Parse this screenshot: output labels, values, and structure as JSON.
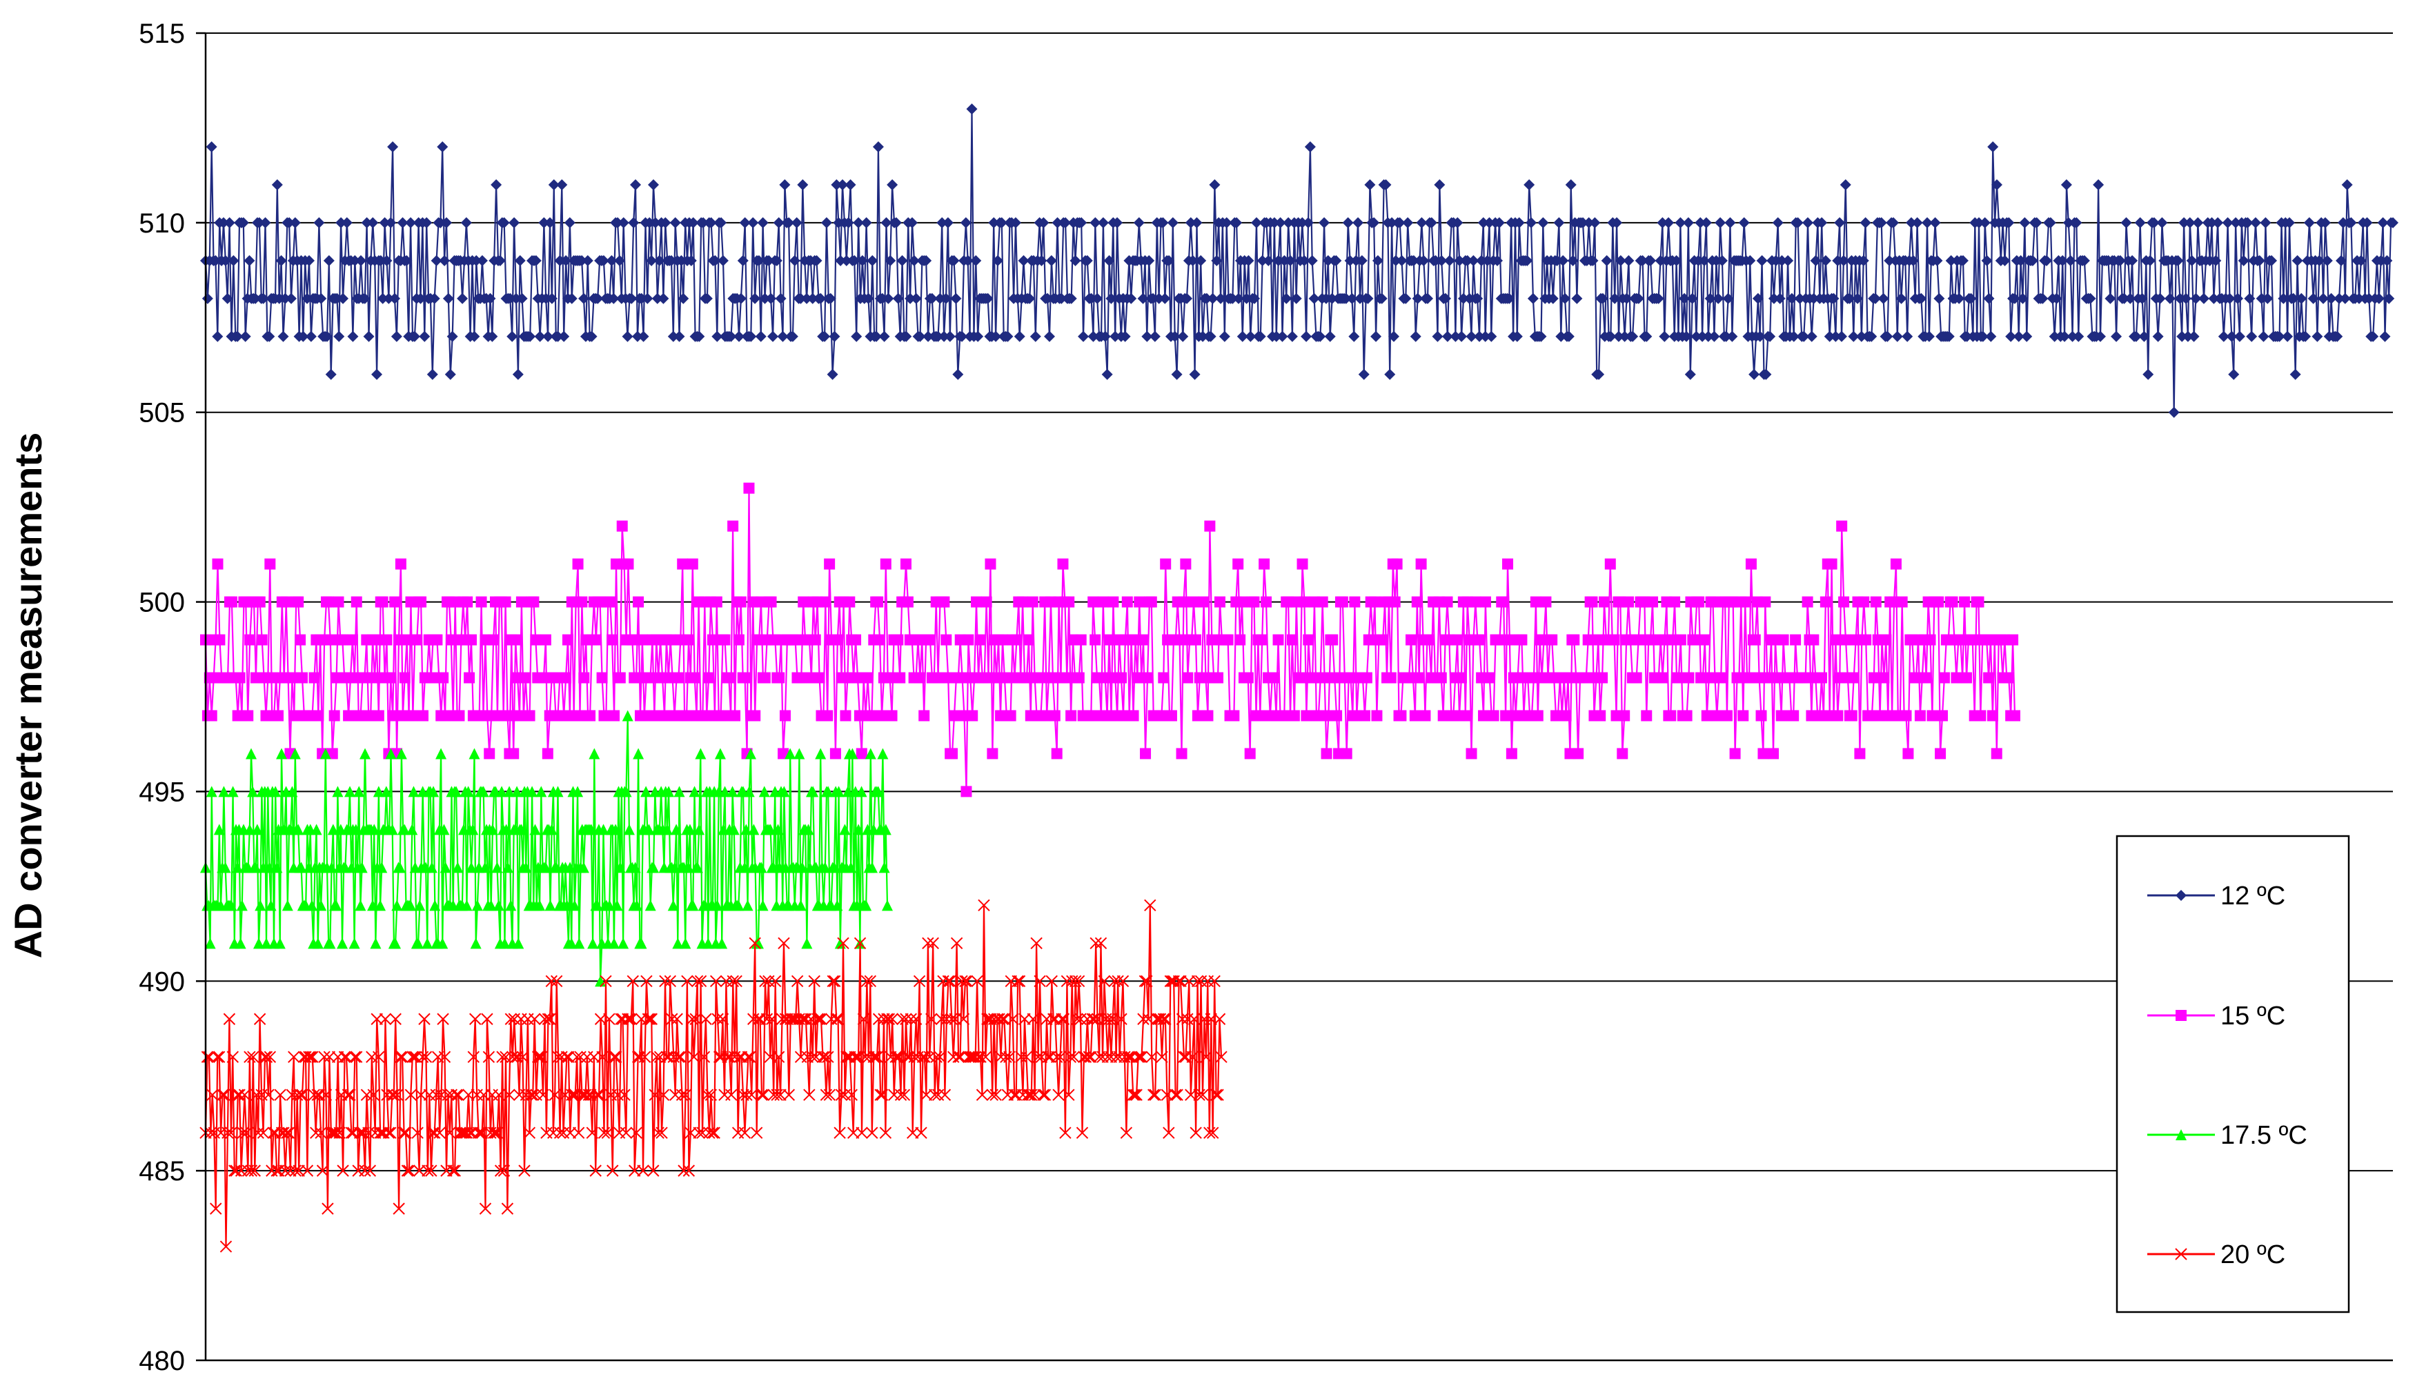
{
  "chart_data": {
    "type": "line",
    "title": "",
    "xlabel": "",
    "ylabel": "AD converter measurements",
    "ylim": [
      480,
      515
    ],
    "yticks": [
      480,
      485,
      490,
      495,
      500,
      505,
      510,
      515
    ],
    "grid": "horizontal",
    "legend_position": "right",
    "series": [
      {
        "name": "12 ºC",
        "color": "#1f2a80",
        "marker": "diamond",
        "n_points": 1100,
        "levels": [
          506,
          507,
          508,
          509,
          510,
          511,
          512
        ],
        "level_probs": [
          0.015,
          0.24,
          0.26,
          0.26,
          0.19,
          0.027,
          0.008
        ],
        "min": 505,
        "max": 513,
        "extremes": [
          {
            "x": 0.35,
            "y": 513
          },
          {
            "x": 0.9,
            "y": 505
          }
        ]
      },
      {
        "name": "15 ºC",
        "color": "#ff00ff",
        "marker": "square",
        "n_points": 900,
        "levels": [
          496,
          497,
          498,
          499,
          500,
          501,
          502
        ],
        "level_probs": [
          0.03,
          0.24,
          0.27,
          0.24,
          0.18,
          0.035,
          0.005
        ],
        "min": 495,
        "max": 503,
        "extremes": [
          {
            "x": 0.3,
            "y": 503
          },
          {
            "x": 0.42,
            "y": 495
          }
        ]
      },
      {
        "name": "17.5 ºC",
        "color": "#00ff00",
        "marker": "triangle",
        "n_points": 450,
        "levels": [
          491,
          492,
          493,
          494,
          495,
          496
        ],
        "level_probs": [
          0.1,
          0.24,
          0.25,
          0.23,
          0.15,
          0.03
        ],
        "min": 490,
        "max": 497,
        "extremes": [
          {
            "x": 0.62,
            "y": 497
          },
          {
            "x": 0.58,
            "y": 490
          }
        ]
      },
      {
        "name": "20 ºC",
        "color": "#ff0000",
        "marker": "x",
        "n_points": 600,
        "levels": [
          485,
          486,
          487,
          488,
          489,
          490,
          491
        ],
        "level_probs": [
          0.04,
          0.2,
          0.28,
          0.26,
          0.17,
          0.045,
          0.005
        ],
        "min": 483,
        "max": 492,
        "trend": "increasing from about 486.5 to about 489",
        "extremes": [
          {
            "x": 0.93,
            "y": 492
          },
          {
            "x": 0.02,
            "y": 483
          }
        ]
      }
    ]
  }
}
